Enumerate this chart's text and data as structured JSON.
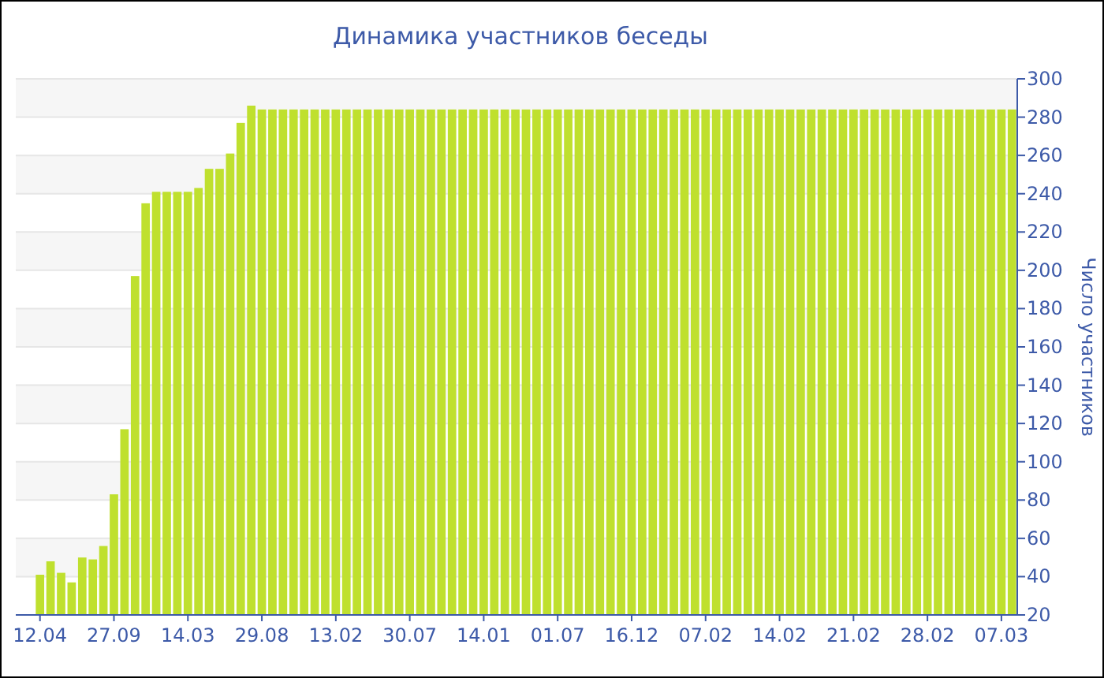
{
  "chart_data": {
    "type": "bar",
    "title": "Динамика участников беседы",
    "ylabel": "Число участников",
    "categories": [
      "12.04",
      null,
      null,
      null,
      null,
      null,
      null,
      "27.09",
      null,
      null,
      null,
      null,
      null,
      null,
      "14.03",
      null,
      null,
      null,
      null,
      null,
      null,
      "29.08",
      null,
      null,
      null,
      null,
      null,
      null,
      "13.02",
      null,
      null,
      null,
      null,
      null,
      null,
      "30.07",
      null,
      null,
      null,
      null,
      null,
      null,
      "14.01",
      null,
      null,
      null,
      null,
      null,
      null,
      "01.07",
      null,
      null,
      null,
      null,
      null,
      null,
      "16.12",
      null,
      null,
      null,
      null,
      null,
      null,
      "07.02",
      null,
      null,
      null,
      null,
      null,
      null,
      "14.02",
      null,
      null,
      null,
      null,
      null,
      null,
      "21.02",
      null,
      null,
      null,
      null,
      null,
      null,
      "28.02",
      null,
      null,
      null,
      null,
      null,
      null,
      "07.03",
      null
    ],
    "values": [
      41,
      48,
      42,
      37,
      50,
      49,
      56,
      83,
      117,
      197,
      235,
      241,
      241,
      241,
      241,
      243,
      253,
      253,
      261,
      277,
      286,
      284,
      284,
      284,
      284,
      284,
      284,
      284,
      284,
      284,
      284,
      284,
      284,
      284,
      284,
      284,
      284,
      284,
      284,
      284,
      284,
      284,
      284,
      284,
      284,
      284,
      284,
      284,
      284,
      284,
      284,
      284,
      284,
      284,
      284,
      284,
      284,
      284,
      284,
      284,
      284,
      284,
      284,
      284,
      284,
      284,
      284,
      284,
      284,
      284,
      284,
      284,
      284,
      284,
      284,
      284,
      284,
      284,
      284,
      284,
      284,
      284,
      284,
      284,
      284,
      284,
      284,
      284,
      284,
      284,
      284,
      284,
      284
    ],
    "color": "#bfe02e",
    "ylim": [
      20,
      300
    ],
    "yticks": [
      20,
      40,
      60,
      80,
      100,
      120,
      140,
      160,
      180,
      200,
      220,
      240,
      260,
      280,
      300
    ],
    "grid": "y"
  }
}
